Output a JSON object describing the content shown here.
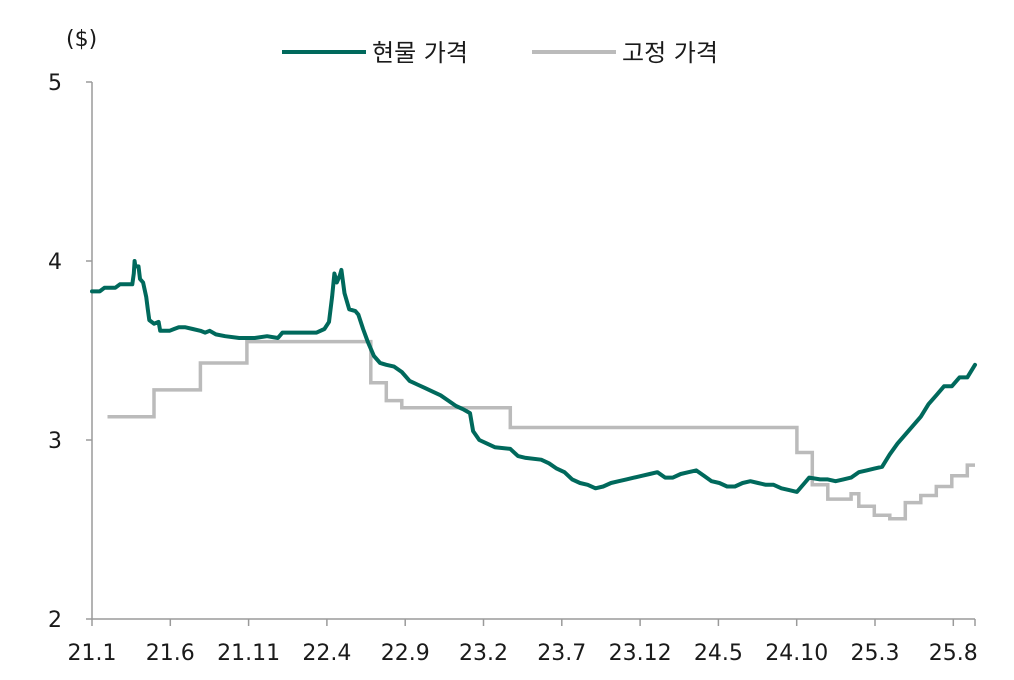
{
  "chart_data": {
    "type": "line",
    "unit_label": "($)",
    "ylim": [
      2,
      5
    ],
    "y_ticks": [
      "2",
      "3",
      "4",
      "5"
    ],
    "x_ticks": [
      "21.1",
      "21.6",
      "21.11",
      "22.4",
      "22.9",
      "23.2",
      "23.7",
      "23.12",
      "24.5",
      "24.10",
      "25.3",
      "25.8"
    ],
    "x_range_months": [
      0,
      57
    ],
    "legend_position": "top-center",
    "series": [
      {
        "name": "현물 가격",
        "color": "#00695c",
        "points": [
          [
            0.0,
            3.83
          ],
          [
            0.5,
            3.83
          ],
          [
            0.8,
            3.85
          ],
          [
            1.5,
            3.85
          ],
          [
            1.8,
            3.87
          ],
          [
            2.6,
            3.87
          ],
          [
            2.7,
            3.93
          ],
          [
            2.75,
            4.0
          ],
          [
            2.8,
            3.97
          ],
          [
            3.0,
            3.97
          ],
          [
            3.1,
            3.9
          ],
          [
            3.3,
            3.88
          ],
          [
            3.5,
            3.8
          ],
          [
            3.6,
            3.73
          ],
          [
            3.7,
            3.67
          ],
          [
            4.0,
            3.65
          ],
          [
            4.3,
            3.66
          ],
          [
            4.4,
            3.61
          ],
          [
            5.0,
            3.61
          ],
          [
            5.3,
            3.62
          ],
          [
            5.6,
            3.63
          ],
          [
            6.0,
            3.63
          ],
          [
            6.5,
            3.62
          ],
          [
            7.0,
            3.61
          ],
          [
            7.3,
            3.6
          ],
          [
            7.6,
            3.61
          ],
          [
            8.0,
            3.59
          ],
          [
            8.6,
            3.58
          ],
          [
            9.5,
            3.57
          ],
          [
            10.5,
            3.57
          ],
          [
            11.3,
            3.58
          ],
          [
            12.0,
            3.57
          ],
          [
            12.3,
            3.6
          ],
          [
            13.0,
            3.6
          ],
          [
            14.5,
            3.6
          ],
          [
            15.0,
            3.62
          ],
          [
            15.3,
            3.66
          ],
          [
            15.5,
            3.8
          ],
          [
            15.65,
            3.93
          ],
          [
            15.8,
            3.88
          ],
          [
            16.0,
            3.92
          ],
          [
            16.1,
            3.95
          ],
          [
            16.3,
            3.82
          ],
          [
            16.6,
            3.73
          ],
          [
            17.0,
            3.72
          ],
          [
            17.2,
            3.7
          ],
          [
            17.5,
            3.62
          ],
          [
            17.8,
            3.55
          ],
          [
            18.2,
            3.47
          ],
          [
            18.6,
            3.43
          ],
          [
            19.0,
            3.42
          ],
          [
            19.5,
            3.41
          ],
          [
            20.0,
            3.38
          ],
          [
            20.5,
            3.33
          ],
          [
            21.0,
            3.31
          ],
          [
            21.5,
            3.29
          ],
          [
            22.0,
            3.27
          ],
          [
            22.5,
            3.25
          ],
          [
            23.0,
            3.22
          ],
          [
            23.5,
            3.19
          ],
          [
            24.0,
            3.17
          ],
          [
            24.4,
            3.15
          ],
          [
            24.6,
            3.05
          ],
          [
            25.0,
            3.0
          ],
          [
            25.5,
            2.98
          ],
          [
            26.0,
            2.96
          ],
          [
            27.0,
            2.95
          ],
          [
            27.5,
            2.91
          ],
          [
            28.0,
            2.9
          ],
          [
            29.0,
            2.89
          ],
          [
            29.5,
            2.87
          ],
          [
            30.0,
            2.84
          ],
          [
            30.5,
            2.82
          ],
          [
            31.0,
            2.78
          ],
          [
            31.5,
            2.76
          ],
          [
            32.0,
            2.75
          ],
          [
            32.5,
            2.73
          ],
          [
            33.0,
            2.74
          ],
          [
            33.5,
            2.76
          ],
          [
            34.0,
            2.77
          ],
          [
            34.5,
            2.78
          ],
          [
            35.0,
            2.79
          ],
          [
            35.5,
            2.8
          ],
          [
            36.0,
            2.81
          ],
          [
            36.5,
            2.82
          ],
          [
            37.0,
            2.79
          ],
          [
            37.5,
            2.79
          ],
          [
            38.0,
            2.81
          ],
          [
            38.5,
            2.82
          ],
          [
            39.0,
            2.83
          ],
          [
            39.5,
            2.8
          ],
          [
            40.0,
            2.77
          ],
          [
            40.5,
            2.76
          ],
          [
            41.0,
            2.74
          ],
          [
            41.5,
            2.74
          ],
          [
            42.0,
            2.76
          ],
          [
            42.5,
            2.77
          ],
          [
            43.0,
            2.76
          ],
          [
            43.5,
            2.75
          ],
          [
            44.0,
            2.75
          ],
          [
            44.5,
            2.73
          ],
          [
            45.0,
            2.72
          ],
          [
            45.5,
            2.71
          ],
          [
            46.0,
            2.76
          ],
          [
            46.3,
            2.79
          ],
          [
            47.0,
            2.78
          ],
          [
            47.5,
            2.78
          ],
          [
            48.0,
            2.77
          ],
          [
            48.5,
            2.78
          ],
          [
            49.0,
            2.79
          ],
          [
            49.5,
            2.82
          ],
          [
            50.0,
            2.83
          ],
          [
            50.5,
            2.84
          ],
          [
            51.0,
            2.85
          ],
          [
            51.5,
            2.92
          ],
          [
            52.0,
            2.98
          ],
          [
            52.5,
            3.03
          ],
          [
            53.0,
            3.08
          ],
          [
            53.5,
            3.13
          ],
          [
            54.0,
            3.2
          ],
          [
            54.5,
            3.25
          ],
          [
            55.0,
            3.3
          ],
          [
            55.5,
            3.3
          ],
          [
            56.0,
            3.35
          ],
          [
            56.5,
            3.35
          ],
          [
            57.0,
            3.42
          ]
        ]
      },
      {
        "name": "고정 가격",
        "color": "#bbbbbb",
        "steps": [
          [
            1.0,
            3.13
          ],
          [
            4.0,
            3.28
          ],
          [
            7.0,
            3.43
          ],
          [
            10.0,
            3.55
          ],
          [
            18.0,
            3.32
          ],
          [
            19.0,
            3.22
          ],
          [
            20.0,
            3.18
          ],
          [
            27.0,
            3.07
          ],
          [
            45.5,
            2.93
          ],
          [
            46.5,
            2.75
          ],
          [
            47.5,
            2.67
          ],
          [
            49.0,
            2.7
          ],
          [
            49.5,
            2.63
          ],
          [
            50.5,
            2.58
          ],
          [
            51.5,
            2.56
          ],
          [
            52.5,
            2.65
          ],
          [
            53.5,
            2.69
          ],
          [
            54.5,
            2.74
          ],
          [
            55.5,
            2.8
          ],
          [
            56.5,
            2.86
          ],
          [
            57.0,
            2.86
          ]
        ]
      }
    ]
  }
}
